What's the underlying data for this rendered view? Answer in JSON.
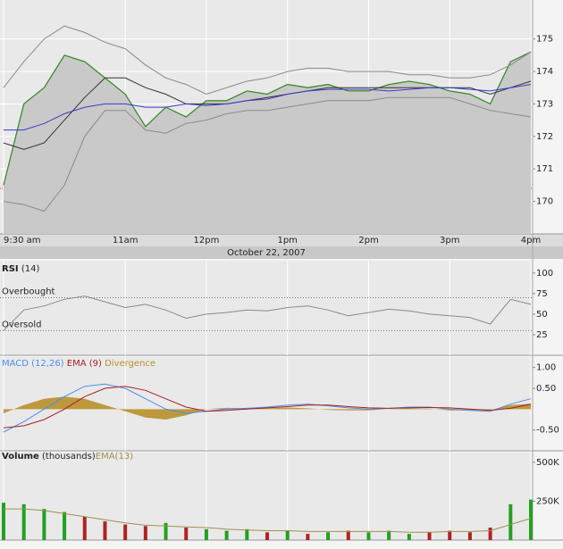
{
  "chart_data": [
    {
      "type": "line",
      "xlabel": "October 22, 2007",
      "x": [
        9.5,
        9.75,
        10,
        10.25,
        10.5,
        10.75,
        11,
        11.25,
        11.5,
        11.75,
        12,
        12.25,
        12.5,
        12.75,
        13,
        13.25,
        13.5,
        13.75,
        14,
        14.25,
        14.5,
        14.75,
        15,
        15.25,
        15.5,
        15.75,
        16
      ],
      "xlim": [
        9.5,
        16
      ],
      "xticks": [
        {
          "value": 9.5,
          "label": "9:30 am"
        },
        {
          "value": 11,
          "label": "11am"
        },
        {
          "value": 12,
          "label": "12pm"
        },
        {
          "value": 13,
          "label": "1pm"
        },
        {
          "value": 14,
          "label": "2pm"
        },
        {
          "value": 15,
          "label": "3pm"
        },
        {
          "value": 16,
          "label": "4pm"
        }
      ],
      "ylim": [
        169,
        176.2
      ],
      "yticks": [
        170,
        171,
        172,
        173,
        174,
        175
      ],
      "grid": true,
      "x_grid": true,
      "ref_line": 170.4,
      "ref_color": "#e0502a",
      "series": [
        {
          "style": "band",
          "color": "#8a8a8a",
          "values": [
            173.5,
            174.3,
            175.0,
            175.4,
            175.2,
            174.9,
            174.7,
            174.2,
            173.8,
            173.6,
            173.3,
            173.5,
            173.7,
            173.8,
            174.0,
            174.1,
            174.1,
            174.0,
            174.0,
            174.0,
            173.9,
            173.9,
            173.8,
            173.8,
            173.9,
            174.2,
            174.6
          ]
        },
        {
          "style": "band",
          "color": "#8a8a8a",
          "values": [
            170.0,
            169.9,
            169.7,
            170.5,
            172.0,
            172.8,
            172.8,
            172.2,
            172.1,
            172.4,
            172.5,
            172.7,
            172.8,
            172.8,
            172.9,
            173.0,
            173.1,
            173.1,
            173.1,
            173.2,
            173.2,
            173.2,
            173.2,
            173.0,
            172.8,
            172.7,
            172.6
          ]
        },
        {
          "style": "area",
          "color": "#3c8c2c",
          "fill": "#c9c9c9",
          "values": [
            170.5,
            173.0,
            173.5,
            174.5,
            174.3,
            173.8,
            173.3,
            172.3,
            172.9,
            172.6,
            173.1,
            173.1,
            173.4,
            173.3,
            173.6,
            173.5,
            173.6,
            173.4,
            173.4,
            173.6,
            173.7,
            173.6,
            173.4,
            173.3,
            173.0,
            174.3,
            174.6
          ]
        },
        {
          "style": "line",
          "color": "#333333",
          "values": [
            171.8,
            171.6,
            171.8,
            172.5,
            173.2,
            173.8,
            173.8,
            173.5,
            173.3,
            173.0,
            173.0,
            173.0,
            173.1,
            173.2,
            173.3,
            173.4,
            173.5,
            173.5,
            173.5,
            173.5,
            173.5,
            173.5,
            173.5,
            173.5,
            173.3,
            173.5,
            173.7
          ]
        },
        {
          "style": "line",
          "color": "#3a3acc",
          "values": [
            172.2,
            172.2,
            172.4,
            172.7,
            172.9,
            173.0,
            173.0,
            172.9,
            172.9,
            173.0,
            172.95,
            173.0,
            173.1,
            173.15,
            173.3,
            173.4,
            173.45,
            173.45,
            173.45,
            173.4,
            173.45,
            173.5,
            173.5,
            173.45,
            173.4,
            173.5,
            173.6
          ]
        }
      ]
    },
    {
      "type": "line",
      "title": "RSI",
      "title_note": "(14)",
      "x": [
        9.5,
        9.75,
        10,
        10.25,
        10.5,
        10.75,
        11,
        11.25,
        11.5,
        11.75,
        12,
        12.25,
        12.5,
        12.75,
        13,
        13.25,
        13.5,
        13.75,
        14,
        14.25,
        14.5,
        14.75,
        15,
        15.25,
        15.5,
        15.75,
        16
      ],
      "ylim": [
        0,
        115
      ],
      "yticks": [
        25,
        50,
        75,
        100
      ],
      "x_grid": true,
      "levels": [
        {
          "value": 70,
          "label": "Overbought"
        },
        {
          "value": 30,
          "label": "Oversold"
        }
      ],
      "series": [
        {
          "style": "line",
          "color": "#8a8a8a",
          "values": [
            30,
            55,
            60,
            68,
            72,
            65,
            58,
            62,
            55,
            45,
            50,
            52,
            55,
            54,
            58,
            60,
            55,
            48,
            52,
            56,
            54,
            50,
            48,
            46,
            38,
            68,
            62
          ]
        }
      ]
    },
    {
      "type": "line",
      "x": [
        9.5,
        9.75,
        10,
        10.25,
        10.5,
        10.75,
        11,
        11.25,
        11.5,
        11.75,
        12,
        12.25,
        12.5,
        12.75,
        13,
        13.25,
        13.5,
        13.75,
        14,
        14.25,
        14.5,
        14.75,
        15,
        15.25,
        15.5,
        15.75,
        16
      ],
      "ylim": [
        -1,
        1.25
      ],
      "yticks": [
        {
          "value": 1,
          "label": "1.00"
        },
        {
          "value": 0.5,
          "label": "0.50"
        },
        {
          "value": -0.5,
          "label": "-0.50"
        }
      ],
      "x_grid": true,
      "series": [
        {
          "name": "MACD (12,26)",
          "style": "line",
          "color": "#4a8ef0",
          "values": [
            -0.55,
            -0.3,
            0.0,
            0.3,
            0.55,
            0.6,
            0.5,
            0.25,
            0.0,
            -0.1,
            -0.05,
            0.0,
            0.02,
            0.05,
            0.1,
            0.12,
            0.08,
            0.03,
            0.0,
            0.02,
            0.05,
            0.05,
            0.0,
            -0.03,
            -0.05,
            0.12,
            0.25
          ]
        },
        {
          "name": "EMA (9)",
          "style": "line",
          "color": "#a82020",
          "values": [
            -0.45,
            -0.4,
            -0.25,
            0.0,
            0.3,
            0.5,
            0.55,
            0.45,
            0.25,
            0.05,
            -0.05,
            -0.03,
            0.0,
            0.03,
            0.06,
            0.1,
            0.1,
            0.06,
            0.03,
            0.02,
            0.03,
            0.04,
            0.03,
            0.0,
            -0.03,
            0.02,
            0.12
          ]
        },
        {
          "name": "Divergence",
          "style": "area",
          "color": "#b8902a",
          "fill": "#b8902a",
          "values": [
            -0.1,
            0.1,
            0.25,
            0.3,
            0.25,
            0.1,
            -0.05,
            -0.2,
            -0.25,
            -0.15,
            0.0,
            0.03,
            0.02,
            0.02,
            0.04,
            0.02,
            -0.02,
            -0.03,
            -0.03,
            0.0,
            0.02,
            0.01,
            -0.03,
            -0.03,
            -0.02,
            0.1,
            0.13
          ]
        }
      ]
    },
    {
      "type": "bar",
      "title": "Volume",
      "title_note": "(thousands)",
      "x": [
        9.5,
        9.75,
        10,
        10.25,
        10.5,
        10.75,
        11,
        11.25,
        11.5,
        11.75,
        12,
        12.25,
        12.5,
        12.75,
        13,
        13.25,
        13.5,
        13.75,
        14,
        14.25,
        14.5,
        14.75,
        15,
        15.25,
        15.5,
        15.75,
        16
      ],
      "ylim": [
        0,
        562
      ],
      "yticks": [
        {
          "value": 250,
          "label": "250K"
        },
        {
          "value": 500,
          "label": "500K"
        }
      ],
      "x_grid": true,
      "up_color": "#22a022",
      "down_color": "#b02222",
      "series": [
        {
          "style": "bar",
          "values": [
            240,
            230,
            200,
            180,
            150,
            120,
            100,
            90,
            110,
            80,
            70,
            60,
            70,
            50,
            60,
            40,
            50,
            60,
            50,
            60,
            40,
            50,
            60,
            50,
            80,
            230,
            260
          ]
        },
        {
          "name": "EMA(13)",
          "style": "line",
          "color": "#a09050",
          "values": [
            200,
            200,
            190,
            170,
            150,
            130,
            110,
            95,
            90,
            85,
            80,
            70,
            65,
            60,
            60,
            55,
            55,
            55,
            55,
            55,
            50,
            50,
            55,
            55,
            60,
            100,
            140
          ]
        }
      ]
    }
  ]
}
